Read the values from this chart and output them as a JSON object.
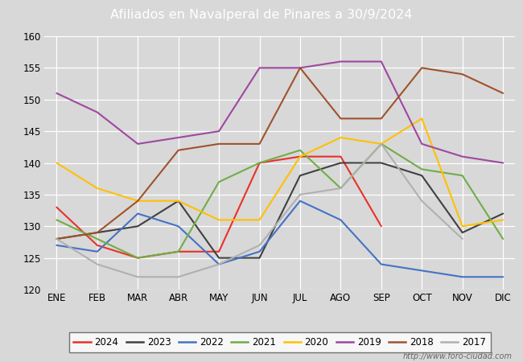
{
  "title": "Afiliados en Navalperal de Pinares a 30/9/2024",
  "title_bg_color": "#4c7ab0",
  "title_text_color": "#ffffff",
  "ylim": [
    120,
    160
  ],
  "yticks": [
    120,
    125,
    130,
    135,
    140,
    145,
    150,
    155,
    160
  ],
  "months": [
    "ENE",
    "FEB",
    "MAR",
    "ABR",
    "MAY",
    "JUN",
    "JUL",
    "AGO",
    "SEP",
    "OCT",
    "NOV",
    "DIC"
  ],
  "series": {
    "2024": {
      "color": "#e8312a",
      "data": [
        133,
        127,
        125,
        126,
        126,
        140,
        141,
        141,
        130,
        null,
        null,
        null
      ]
    },
    "2023": {
      "color": "#404040",
      "data": [
        128,
        129,
        130,
        134,
        125,
        125,
        138,
        140,
        140,
        138,
        129,
        132
      ]
    },
    "2022": {
      "color": "#4472c4",
      "data": [
        127,
        126,
        132,
        130,
        124,
        126,
        134,
        131,
        124,
        123,
        122,
        122
      ]
    },
    "2021": {
      "color": "#70ad47",
      "data": [
        131,
        128,
        125,
        126,
        137,
        140,
        142,
        136,
        143,
        139,
        138,
        128
      ]
    },
    "2020": {
      "color": "#ffc000",
      "data": [
        140,
        136,
        134,
        134,
        131,
        131,
        141,
        144,
        143,
        147,
        130,
        131
      ]
    },
    "2019": {
      "color": "#9e48a0",
      "data": [
        151,
        148,
        143,
        144,
        145,
        155,
        155,
        156,
        156,
        143,
        141,
        140
      ]
    },
    "2018": {
      "color": "#a0522d",
      "data": [
        128,
        129,
        134,
        142,
        143,
        143,
        155,
        147,
        147,
        155,
        154,
        151
      ]
    },
    "2017": {
      "color": "#b0b0b0",
      "data": [
        128,
        124,
        122,
        122,
        124,
        127,
        135,
        136,
        143,
        134,
        128,
        null
      ]
    }
  },
  "fig_bg_color": "#d8d8d8",
  "plot_bg_color": "#d8d8d8",
  "grid_color": "#ffffff",
  "watermark": "http://www.foro-ciudad.com",
  "legend_years": [
    "2024",
    "2023",
    "2022",
    "2021",
    "2020",
    "2019",
    "2018",
    "2017"
  ]
}
